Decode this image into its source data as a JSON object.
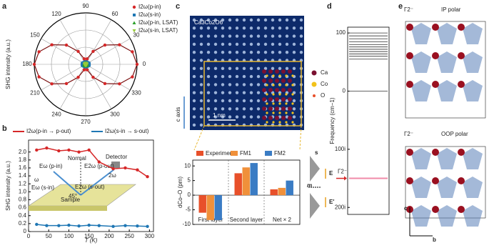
{
  "panel_labels": [
    "a",
    "b",
    "c",
    "d",
    "e"
  ],
  "chart_data": [
    {
      "type": "polar",
      "ylabel": "SHG intensity (a.u.)",
      "theta": [
        0,
        15,
        30,
        45,
        60,
        75,
        90,
        105,
        120,
        135,
        150,
        165,
        180,
        195,
        210,
        225,
        240,
        255,
        270,
        285,
        300,
        315,
        330,
        345
      ],
      "rlim": [
        0,
        1
      ],
      "thetaticks": [
        0,
        30,
        60,
        90,
        120,
        150,
        180,
        210,
        240,
        270,
        300,
        330
      ],
      "series": [
        {
          "name": "I2ω(p-in)",
          "color": "#d62728",
          "marker": "circle",
          "line": true,
          "values": [
            1.0,
            0.94,
            0.76,
            0.53,
            0.29,
            0.11,
            0.05,
            0.11,
            0.29,
            0.53,
            0.76,
            0.94,
            1.0,
            0.94,
            0.76,
            0.53,
            0.29,
            0.11,
            0.05,
            0.11,
            0.29,
            0.53,
            0.76,
            0.94
          ]
        },
        {
          "name": "I2ω(s-in)",
          "color": "#1f77b4",
          "marker": "square",
          "line": false,
          "values": [
            0.07,
            0.07,
            0.06,
            0.05,
            0.05,
            0.05,
            0.05,
            0.05,
            0.05,
            0.05,
            0.06,
            0.07,
            0.07,
            0.07,
            0.06,
            0.05,
            0.05,
            0.05,
            0.05,
            0.05,
            0.05,
            0.05,
            0.06,
            0.07
          ]
        },
        {
          "name": "I2ω(p-in, LSAT)",
          "color": "#2ca02c",
          "marker": "triangle",
          "line": false,
          "values": [
            0.03,
            0.03,
            0.03,
            0.03,
            0.03,
            0.03,
            0.03,
            0.03,
            0.03,
            0.03,
            0.03,
            0.03,
            0.03,
            0.03,
            0.03,
            0.03,
            0.03,
            0.03,
            0.03,
            0.03,
            0.03,
            0.03,
            0.03,
            0.03
          ]
        },
        {
          "name": "I2ω(s-in, LSAT)",
          "color": "#98c93c",
          "marker": "triangle-down",
          "line": false,
          "values": [
            0.02,
            0.02,
            0.02,
            0.02,
            0.02,
            0.02,
            0.02,
            0.02,
            0.02,
            0.02,
            0.02,
            0.02,
            0.02,
            0.02,
            0.02,
            0.02,
            0.02,
            0.02,
            0.02,
            0.02,
            0.02,
            0.02,
            0.02,
            0.02
          ]
        }
      ]
    },
    {
      "type": "line",
      "xlabel": "T (K)",
      "ylabel": "SHG intensity (a.u.)",
      "x": [
        20,
        45,
        75,
        100,
        125,
        150,
        175,
        210,
        240,
        270,
        295
      ],
      "xlim": [
        0,
        310
      ],
      "xticks": [
        0,
        50,
        100,
        150,
        200,
        250,
        300
      ],
      "ylim": [
        0,
        2.3
      ],
      "yticks": [
        0,
        {
          "value": 0.2,
          "label": "0.2"
        },
        {
          "value": 0.4,
          "label": "0.4"
        },
        {
          "value": 0.6,
          "label": "0.6"
        },
        {
          "value": 0.8,
          "label": "0.8"
        },
        {
          "value": 1.0,
          "label": "1.0"
        },
        {
          "value": 1.2,
          "label": "1.2"
        },
        {
          "value": 1.4,
          "label": "1.4"
        },
        {
          "value": 1.6,
          "label": "1.6"
        },
        {
          "value": 1.8,
          "label": "1.8"
        },
        {
          "value": 2.0,
          "label": "2.0"
        }
      ],
      "series": [
        {
          "name": "I2ω(p-in → p-out)",
          "color": "#d62728",
          "values": [
            2.05,
            2.1,
            2.03,
            2.05,
            2.0,
            2.05,
            1.75,
            1.58,
            1.6,
            1.55,
            1.38
          ]
        },
        {
          "name": "I2ω(s-in → s-out)",
          "color": "#1f77b4",
          "values": [
            0.18,
            0.15,
            0.15,
            0.16,
            0.14,
            0.16,
            0.15,
            0.13,
            0.15,
            0.14,
            0.13
          ]
        }
      ],
      "annotations": [
        "Normal",
        "Eω (p-in)",
        "E2ω (p-out)",
        "Eω (s-in)",
        "E2ω (s-out)",
        "Detector",
        "2ω",
        "ω",
        "45°",
        "Sample"
      ]
    },
    {
      "type": "bar",
      "ylabel": "dCo–O (pm)",
      "categories": [
        "First layer",
        "Second layer",
        "Net × 2"
      ],
      "ylim": [
        -10,
        12
      ],
      "yticks": [
        -10,
        -5,
        0,
        5,
        10
      ],
      "series": [
        {
          "name": "Experiment",
          "color": "#e8502a",
          "values": [
            -6,
            7.5,
            2
          ]
        },
        {
          "name": "FM1",
          "color": "#f0903a",
          "values": [
            -8.5,
            9.5,
            2.5
          ]
        },
        {
          "name": "FM2",
          "color": "#3a7cc4",
          "values": [
            -8.5,
            11,
            5
          ]
        }
      ]
    },
    {
      "type": "levels",
      "ylabel": "Frequency (cm−1)",
      "ylim": [
        -212,
        110
      ],
      "yticks": [
        100,
        0,
        {
          "value": -100,
          "label": "100i"
        },
        {
          "value": -200,
          "label": "200i"
        }
      ],
      "series": [
        {
          "color": "#333333",
          "values": [
            55,
            60,
            64,
            68,
            72,
            76,
            80,
            85,
            90,
            95,
            100,
            0
          ]
        },
        {
          "color": "#f08aa8",
          "values": [
            -150
          ]
        }
      ],
      "annotation": "Γ2⁻"
    }
  ],
  "panel_c": {
    "title": "Ca3Co2O6",
    "scale": "1 nm",
    "axis": "c axis",
    "legend": [
      "Ca",
      "Co",
      "O"
    ],
    "diagram": [
      "s",
      "m",
      "E",
      "E′"
    ]
  },
  "panel_e": {
    "labels": [
      "Γ2⁻",
      "IP polar",
      "Γ2⁻",
      "OOP polar",
      "c",
      "b"
    ]
  }
}
